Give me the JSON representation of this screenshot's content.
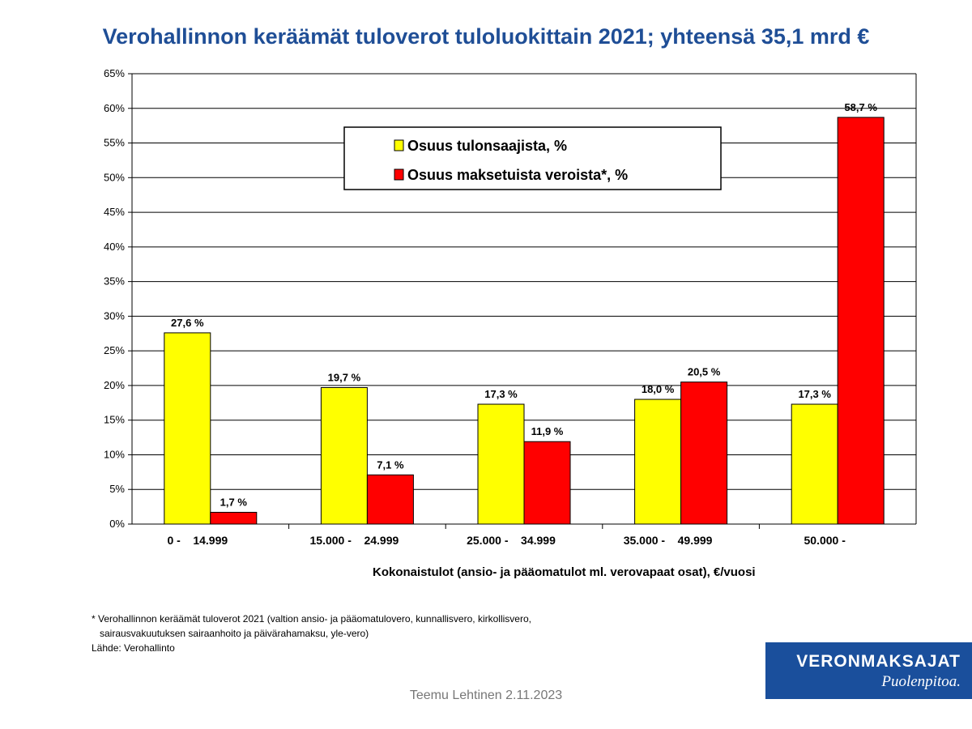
{
  "title": "Verohallinnon keräämät tuloverot tuloluokittain 2021; yhteensä 35,1 mrd €",
  "chart_data": {
    "type": "bar",
    "categories": [
      "0 -    14.999",
      "15.000 -    24.999",
      "25.000 -    34.999",
      "35.000 -    49.999",
      "50.000 -"
    ],
    "series": [
      {
        "name": "Osuus tulonsaajista, %",
        "values": [
          27.6,
          19.7,
          17.3,
          18.0,
          17.3
        ],
        "labels": [
          "27,6 %",
          "19,7 %",
          "17,3 %",
          "18,0 %",
          "17,3 %"
        ],
        "color": "#ffff00"
      },
      {
        "name": "Osuus maksetuista veroista*, %",
        "values": [
          1.7,
          7.1,
          11.9,
          20.5,
          58.7
        ],
        "labels": [
          "1,7 %",
          "7,1 %",
          "11,9 %",
          "20,5 %",
          "58,7 %"
        ],
        "color": "#ff0000"
      }
    ],
    "yticks": [
      "0%",
      "5%",
      "10%",
      "15%",
      "20%",
      "25%",
      "30%",
      "35%",
      "40%",
      "45%",
      "50%",
      "55%",
      "60%",
      "65%"
    ],
    "ylim": [
      0,
      65
    ],
    "xlabel": "Kokonaistulot (ansio- ja pääomatulot ml. verovapaat osat), €/vuosi",
    "ylabel": "",
    "grid": true,
    "legend_position": "top-center"
  },
  "footnote": {
    "line1": "* Verohallinnon keräämät tuloverot 2021 (valtion ansio- ja pääomatulovero, kunnallisvero, kirkollisvero,",
    "line2": "sairausvakuutuksen sairaanhoito ja päivärahamaksu, yle-vero)",
    "source": "Lähde: Verohallinto"
  },
  "author": "Teemu Lehtinen  2.11.2023",
  "logo": {
    "brand": "VERONMAKSAJAT",
    "slogan": "Puolenpitoa."
  },
  "colors": {
    "title": "#1f4e96",
    "logo_bg": "#1a4f9c",
    "grid": "#000000"
  }
}
